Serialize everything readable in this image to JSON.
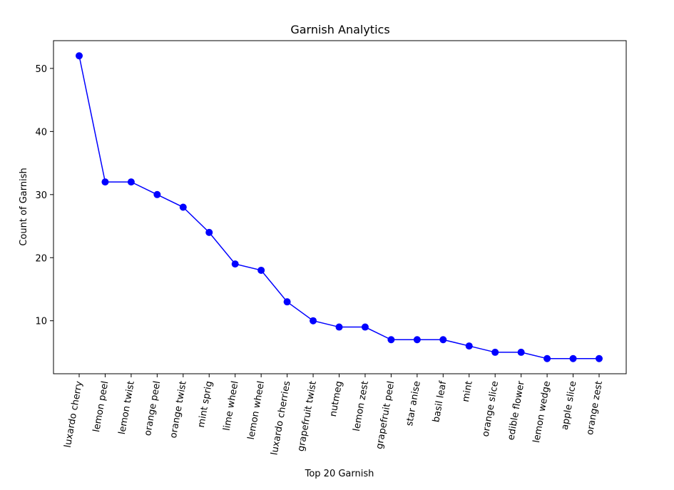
{
  "chart_data": {
    "type": "line",
    "title": "Garnish Analytics",
    "xlabel": "Top 20 Garnish",
    "ylabel": "Count of Garnish",
    "ylim": [
      1.6,
      54.4
    ],
    "yticks": [
      10,
      20,
      30,
      40,
      50
    ],
    "grid": false,
    "color": "#0000ff",
    "categories": [
      "luxardo cherry",
      "lemon peel",
      "lemon twist",
      "orange peel",
      "orange twist",
      "mint sprig",
      "lime wheel",
      "lemon wheel",
      "luxardo cherries",
      "grapefruit twist",
      "nutmeg",
      "lemon zest",
      "grapefruit peel",
      "star anise",
      "basil leaf",
      "mint",
      "orange slice",
      "edible flower",
      "lemon wedge",
      "apple slice",
      "orange zest"
    ],
    "values": [
      52,
      32,
      32,
      30,
      28,
      24,
      19,
      18,
      13,
      10,
      9,
      9,
      7,
      7,
      7,
      6,
      5,
      5,
      4,
      4,
      4
    ]
  }
}
